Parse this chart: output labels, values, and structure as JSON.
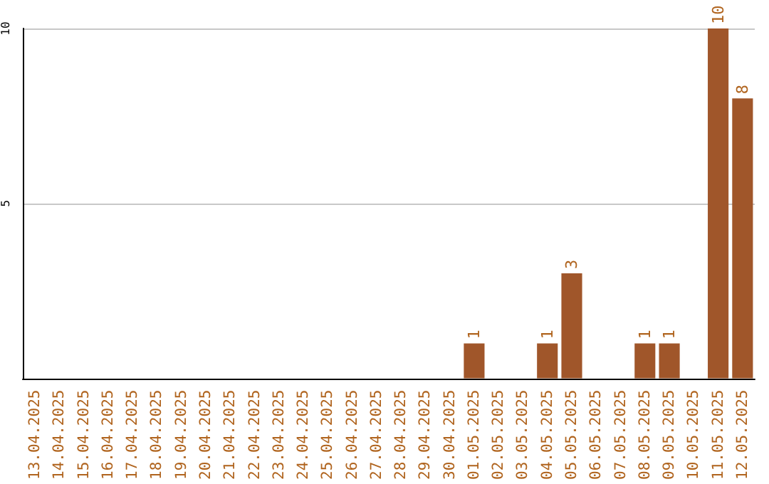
{
  "chart_data": {
    "type": "bar",
    "categories": [
      "13.04.2025",
      "14.04.2025",
      "15.04.2025",
      "16.04.2025",
      "17.04.2025",
      "18.04.2025",
      "19.04.2025",
      "20.04.2025",
      "21.04.2025",
      "22.04.2025",
      "23.04.2025",
      "24.04.2025",
      "25.04.2025",
      "26.04.2025",
      "27.04.2025",
      "28.04.2025",
      "29.04.2025",
      "30.04.2025",
      "01.05.2025",
      "02.05.2025",
      "03.05.2025",
      "04.05.2025",
      "05.05.2025",
      "06.05.2025",
      "07.05.2025",
      "08.05.2025",
      "09.05.2025",
      "10.05.2025",
      "11.05.2025",
      "12.05.2025"
    ],
    "values": [
      0,
      0,
      0,
      0,
      0,
      0,
      0,
      0,
      0,
      0,
      0,
      0,
      0,
      0,
      0,
      0,
      0,
      0,
      1,
      0,
      0,
      1,
      3,
      0,
      0,
      1,
      1,
      0,
      10,
      8
    ],
    "value_labels": [
      null,
      null,
      null,
      null,
      null,
      null,
      null,
      null,
      null,
      null,
      null,
      null,
      null,
      null,
      null,
      null,
      null,
      null,
      "1",
      null,
      null,
      "1",
      "3",
      null,
      null,
      "1",
      "1",
      null,
      "10",
      "8"
    ],
    "color": "#a0562a",
    "ylim": [
      0,
      10
    ],
    "yticks": [
      5,
      10
    ],
    "grid": "y"
  }
}
